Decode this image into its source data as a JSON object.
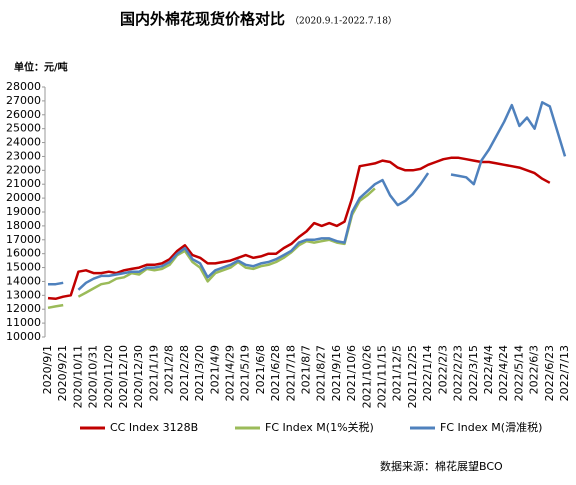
{
  "chart_data": {
    "type": "line",
    "title": "国内外棉花现货价格对比",
    "subtitle": "（2020.9.1-2022.7.18）",
    "y_label": "单位：元/吨",
    "source": "数据来源：棉花展望BCO",
    "categories": [
      "2020/9/1",
      null,
      "2020/9/21",
      null,
      "2020/10/11",
      null,
      "2020/10/31",
      null,
      "2020/11/20",
      null,
      "2020/12/10",
      null,
      "2020/12/30",
      null,
      "2021/1/19",
      null,
      "2021/2/8",
      null,
      "2021/2/28",
      null,
      "2021/3/20",
      null,
      "2021/4/9",
      null,
      "2021/4/29",
      null,
      "2021/5/19",
      null,
      "2021/6/8",
      null,
      "2021/6/28",
      null,
      "2021/7/18",
      null,
      "2021/8/7",
      null,
      "2021/8/27",
      null,
      "2021/9/16",
      null,
      "2021/10/6",
      null,
      "2021/10/26",
      null,
      "2021/11/15",
      null,
      "2021/12/5",
      null,
      "2021/12/25",
      null,
      "2022/1/14",
      null,
      "2022/2/3",
      null,
      "2022/2/23",
      null,
      "2022/3/15",
      null,
      "2022/4/4",
      null,
      "2022/4/24",
      null,
      "2022/5/14",
      null,
      "2022/6/3",
      null,
      "2022/6/23",
      null,
      "2022/7/13"
    ],
    "series": [
      {
        "name": "CC Index 3128B",
        "color": "#c00000",
        "values": [
          12800,
          12750,
          12900,
          13000,
          14700,
          14800,
          14600,
          14600,
          14700,
          14600,
          14800,
          14900,
          15000,
          15200,
          15200,
          15300,
          15600,
          16200,
          16600,
          15900,
          15700,
          15300,
          15300,
          15400,
          15500,
          15700,
          15900,
          15700,
          15800,
          16000,
          16000,
          16400,
          16700,
          17200,
          17600,
          18200,
          18000,
          18200,
          18000,
          18300,
          20000,
          22300,
          22400,
          22500,
          22700,
          22600,
          22200,
          22000,
          22000,
          22100,
          22400,
          22600,
          22800,
          22900,
          22900,
          22800,
          22700,
          22600,
          22600,
          22500,
          22400,
          22300,
          22200,
          22000,
          21800,
          21400,
          21100,
          null,
          null
        ]
      },
      {
        "name": "FC Index M(1%关税)",
        "color": "#9bbb59",
        "values": [
          12100,
          12200,
          12300,
          null,
          12900,
          13200,
          13500,
          13800,
          13900,
          14200,
          14300,
          14600,
          14500,
          14900,
          14800,
          14900,
          15200,
          15900,
          16200,
          15400,
          15000,
          14000,
          14600,
          14800,
          15000,
          15400,
          15000,
          14900,
          15100,
          15200,
          15400,
          15700,
          16100,
          16600,
          16900,
          16800,
          16900,
          17000,
          16800,
          16700,
          18800,
          19800,
          20200,
          20700,
          null,
          null,
          null,
          null,
          null,
          null,
          null,
          null,
          null,
          null,
          null,
          null,
          null,
          null,
          null,
          null,
          null,
          null,
          null,
          null,
          null,
          null,
          null,
          null,
          null
        ]
      },
      {
        "name": "FC Index M(滑准税)",
        "color": "#4f81bd",
        "values": [
          13800,
          13800,
          13900,
          null,
          13400,
          13900,
          14200,
          14400,
          14400,
          14500,
          14600,
          14700,
          14700,
          15000,
          15000,
          15100,
          15400,
          16000,
          16400,
          15600,
          15300,
          14300,
          14800,
          15000,
          15200,
          15500,
          15200,
          15100,
          15300,
          15400,
          15600,
          15900,
          16200,
          16800,
          17000,
          17000,
          17100,
          17100,
          16900,
          16800,
          19000,
          20000,
          20500,
          21000,
          21300,
          20200,
          19500,
          19800,
          20300,
          21000,
          21800,
          null,
          null,
          21700,
          21600,
          21500,
          21000,
          22700,
          23500,
          24500,
          25500,
          26700,
          25200,
          25800,
          25000,
          26900,
          26600,
          24800,
          23000
        ]
      }
    ],
    "ylim": [
      10000,
      28000
    ],
    "yticks": [
      10000,
      11000,
      12000,
      13000,
      14000,
      15000,
      16000,
      17000,
      18000,
      19000,
      20000,
      21000,
      22000,
      23000,
      24000,
      25000,
      26000,
      27000,
      28000
    ],
    "legend": "bottom"
  }
}
